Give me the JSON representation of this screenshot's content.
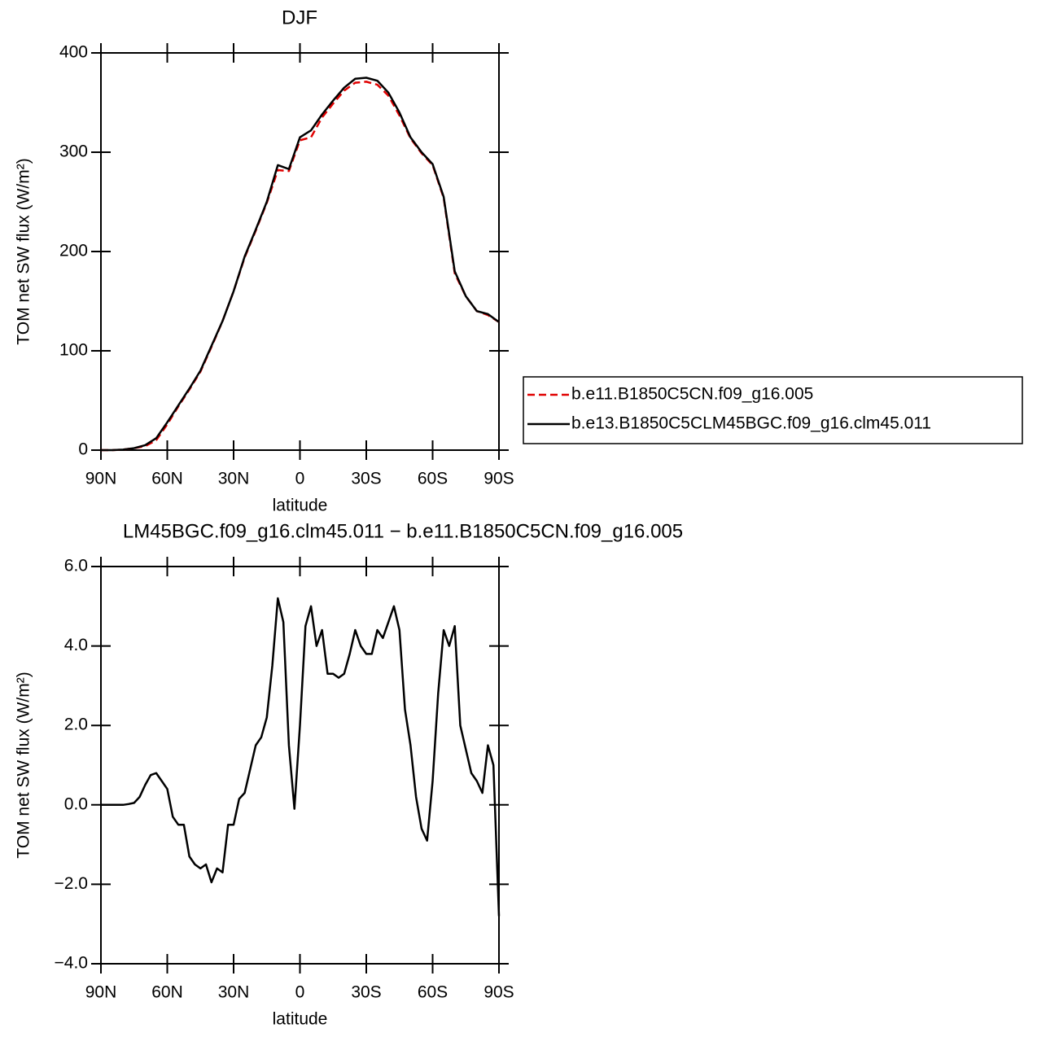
{
  "chart_data": [
    {
      "type": "line",
      "title": "DJF",
      "xlabel": "latitude",
      "ylabel": "TOM net SW flux (W/m²)",
      "x": [
        90,
        85,
        80,
        75,
        70,
        65,
        60,
        55,
        50,
        45,
        40,
        35,
        30,
        25,
        20,
        15,
        10,
        5,
        0,
        -5,
        -10,
        -15,
        -20,
        -25,
        -30,
        -35,
        -40,
        -45,
        -50,
        -55,
        -60,
        -65,
        -70,
        -75,
        -80,
        -85,
        -90
      ],
      "series": [
        {
          "name": "b.e11.B1850C5CN.f09_g16.005",
          "color": "#e00000",
          "dash": true,
          "values": [
            0,
            0,
            0.5,
            2,
            4,
            10,
            26,
            44,
            61,
            79,
            104,
            130,
            160,
            194,
            221,
            249,
            282,
            281,
            312,
            315,
            335,
            349,
            362,
            370,
            371,
            368,
            357,
            337,
            314,
            299,
            287,
            254,
            178,
            155,
            140,
            136,
            129
          ]
        },
        {
          "name": "b.e13.B1850C5CLM45BGC.f09_g16.clm45.011",
          "color": "#000000",
          "dash": false,
          "values": [
            0,
            0,
            0.5,
            2,
            5,
            12,
            28,
            45,
            62,
            80,
            105,
            130,
            160,
            195,
            222,
            250,
            287,
            283,
            315,
            322,
            338,
            352,
            365,
            374,
            375,
            372,
            360,
            340,
            315,
            300,
            288,
            255,
            180,
            155,
            140,
            137,
            129
          ]
        }
      ],
      "xlim": [
        90,
        -90
      ],
      "ylim": [
        0,
        400
      ],
      "xticks": [
        {
          "value": 90,
          "label": "90N"
        },
        {
          "value": 60,
          "label": "60N"
        },
        {
          "value": 30,
          "label": "30N"
        },
        0,
        {
          "value": -30,
          "label": "30S"
        },
        {
          "value": -60,
          "label": "60S"
        },
        {
          "value": -90,
          "label": "90S"
        }
      ],
      "yticks": [
        0,
        100,
        200,
        300,
        400
      ],
      "legend": "right"
    },
    {
      "type": "line",
      "title": "LM45BGC.f09_g16.clm45.011 − b.e11.B1850C5CN.f09_g16.005",
      "xlabel": "latitude",
      "ylabel": "TOM net SW flux (W/m²)",
      "x": [
        90,
        87.5,
        85,
        82.5,
        80,
        77.5,
        75,
        72.5,
        70,
        67.5,
        65,
        62.5,
        60,
        57.5,
        55,
        52.5,
        50,
        47.5,
        45,
        42.5,
        40,
        37.5,
        35,
        32.5,
        30,
        27.5,
        25,
        22.5,
        20,
        17.5,
        15,
        12.5,
        10,
        7.5,
        5,
        2.5,
        0,
        -2.5,
        -5,
        -7.5,
        -10,
        -12.5,
        -15,
        -17.5,
        -20,
        -22.5,
        -25,
        -27.5,
        -30,
        -32.5,
        -35,
        -37.5,
        -40,
        -42.5,
        -45,
        -47.5,
        -50,
        -52.5,
        -55,
        -57.5,
        -60,
        -62.5,
        -65,
        -67.5,
        -70,
        -72.5,
        -75,
        -77.5,
        -80,
        -82.5,
        -85,
        -87.5,
        -90
      ],
      "values": [
        0,
        0,
        0,
        0,
        0,
        0.02,
        0.05,
        0.2,
        0.5,
        0.75,
        0.8,
        0.6,
        0.4,
        -0.3,
        -0.5,
        -0.5,
        -1.3,
        -1.5,
        -1.6,
        -1.5,
        -1.95,
        -1.6,
        -1.7,
        -0.5,
        -0.5,
        0.15,
        0.3,
        0.9,
        1.5,
        1.7,
        2.2,
        3.5,
        5.2,
        4.6,
        1.5,
        -0.1,
        2.0,
        4.5,
        5.0,
        4.0,
        4.4,
        3.3,
        3.3,
        3.2,
        3.3,
        3.8,
        4.4,
        4.0,
        3.8,
        3.8,
        4.4,
        4.2,
        4.6,
        5.0,
        4.4,
        2.4,
        1.5,
        0.2,
        -0.6,
        -0.9,
        0.6,
        2.8,
        4.4,
        4.0,
        4.5,
        2.0,
        1.4,
        0.8,
        0.6,
        0.3,
        1.5,
        1.0,
        -2.8
      ],
      "color": "#000000",
      "xlim": [
        90,
        -90
      ],
      "ylim": [
        -4,
        6
      ],
      "xticks": [
        {
          "value": 90,
          "label": "90N"
        },
        {
          "value": 60,
          "label": "60N"
        },
        {
          "value": 30,
          "label": "30N"
        },
        0,
        {
          "value": -30,
          "label": "30S"
        },
        {
          "value": -60,
          "label": "60S"
        },
        {
          "value": -90,
          "label": "90S"
        }
      ],
      "yticks": [
        {
          "value": -4,
          "label": "−4.0"
        },
        {
          "value": -2,
          "label": "−2.0"
        },
        {
          "value": 0,
          "label": "0.0"
        },
        {
          "value": 2,
          "label": "2.0"
        },
        {
          "value": 4,
          "label": "4.0"
        },
        {
          "value": 6,
          "label": "6.0"
        }
      ]
    }
  ]
}
